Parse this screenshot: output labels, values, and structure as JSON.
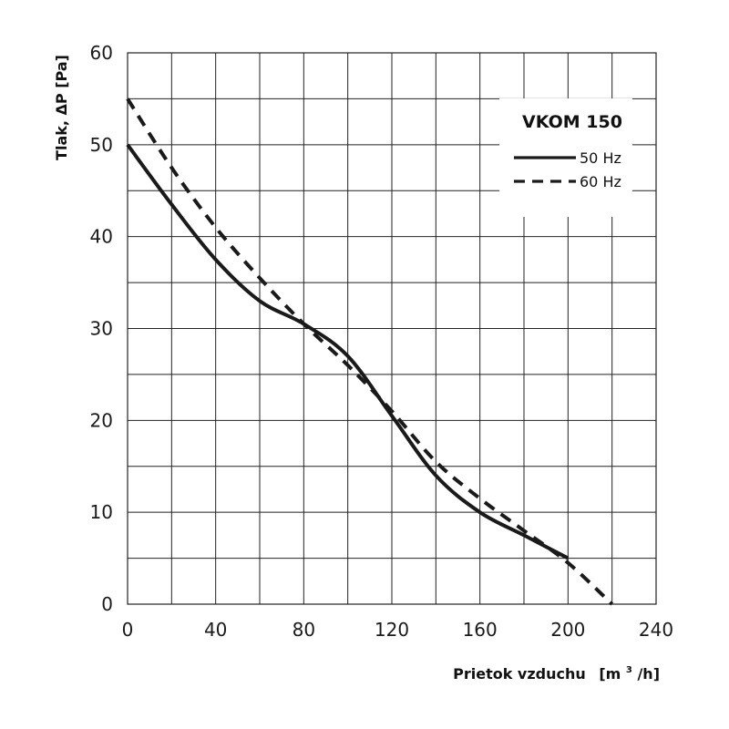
{
  "chart_data": {
    "type": "line",
    "title": "",
    "legend_title": "VKOM 150",
    "xlabel_main": "Prietok vzduchu",
    "xlabel_unit_pre": "[m",
    "xlabel_unit_sup": "3",
    "xlabel_unit_post": "/h]",
    "ylabel": "Tlak, ΔP [Pa]",
    "xlim": [
      0,
      240
    ],
    "ylim": [
      0,
      60
    ],
    "x_ticks": [
      0,
      40,
      80,
      120,
      160,
      200,
      240
    ],
    "y_ticks": [
      0,
      10,
      20,
      30,
      40,
      50,
      60
    ],
    "grid": true,
    "grid_x_step": 20,
    "grid_y_step": 5,
    "legend_position": "top-right",
    "series": [
      {
        "name": "50 Hz",
        "style": "solid",
        "color": "#1a1a1a",
        "x": [
          0,
          20,
          40,
          60,
          80,
          100,
          120,
          140,
          160,
          180,
          200
        ],
        "y": [
          50,
          43.5,
          37.5,
          33,
          30.5,
          27,
          20.5,
          14,
          10,
          7.5,
          5
        ]
      },
      {
        "name": "60 Hz",
        "style": "dashed",
        "color": "#1a1a1a",
        "x": [
          0,
          20,
          40,
          60,
          80,
          100,
          120,
          140,
          160,
          180,
          200,
          220
        ],
        "y": [
          55,
          47.5,
          41,
          35.5,
          30.5,
          26,
          21,
          15.5,
          11.5,
          8,
          4.5,
          0
        ]
      }
    ]
  }
}
